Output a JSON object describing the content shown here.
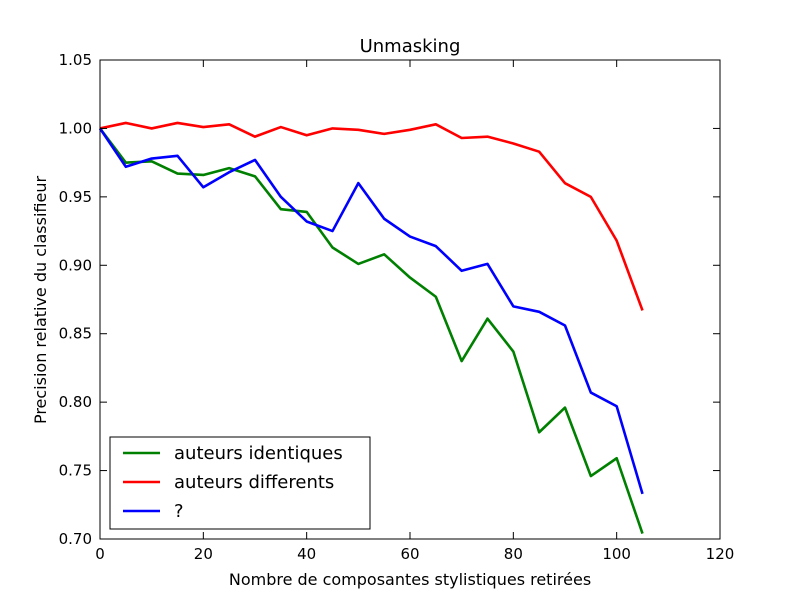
{
  "chart_data": {
    "type": "line",
    "title": "Unmasking",
    "xlabel": "Nombre de composantes stylistiques retirées",
    "ylabel": "Precision relative du classifieur",
    "xlim": [
      0,
      120
    ],
    "ylim": [
      0.7,
      1.05
    ],
    "x_ticks": [
      "0",
      "20",
      "40",
      "60",
      "80",
      "100",
      "120"
    ],
    "y_ticks": [
      "0.70",
      "0.75",
      "0.80",
      "0.85",
      "0.90",
      "0.95",
      "1.00",
      "1.05"
    ],
    "grid": false,
    "legend_position": "bottom-left",
    "x": [
      0,
      5,
      10,
      15,
      20,
      25,
      30,
      35,
      40,
      45,
      50,
      55,
      60,
      65,
      70,
      75,
      80,
      85,
      90,
      95,
      100,
      105
    ],
    "series": [
      {
        "name": "auteurs identiques",
        "color": "#008000",
        "values": [
          1.0,
          0.975,
          0.976,
          0.967,
          0.966,
          0.971,
          0.965,
          0.941,
          0.939,
          0.913,
          0.901,
          0.908,
          0.891,
          0.877,
          0.83,
          0.861,
          0.837,
          0.778,
          0.796,
          0.746,
          0.759,
          0.704
        ]
      },
      {
        "name": "auteurs differents",
        "color": "#ff0000",
        "values": [
          1.0,
          1.004,
          1.0,
          1.004,
          1.001,
          1.003,
          0.994,
          1.001,
          0.995,
          1.0,
          0.999,
          0.996,
          0.999,
          1.003,
          0.993,
          0.994,
          0.989,
          0.983,
          0.96,
          0.95,
          0.918,
          0.867
        ]
      },
      {
        "name": "?",
        "color": "#0000ff",
        "values": [
          1.0,
          0.972,
          0.978,
          0.98,
          0.957,
          0.968,
          0.977,
          0.95,
          0.932,
          0.925,
          0.96,
          0.934,
          0.921,
          0.914,
          0.896,
          0.901,
          0.87,
          0.866,
          0.856,
          0.807,
          0.797,
          0.733
        ]
      }
    ]
  }
}
